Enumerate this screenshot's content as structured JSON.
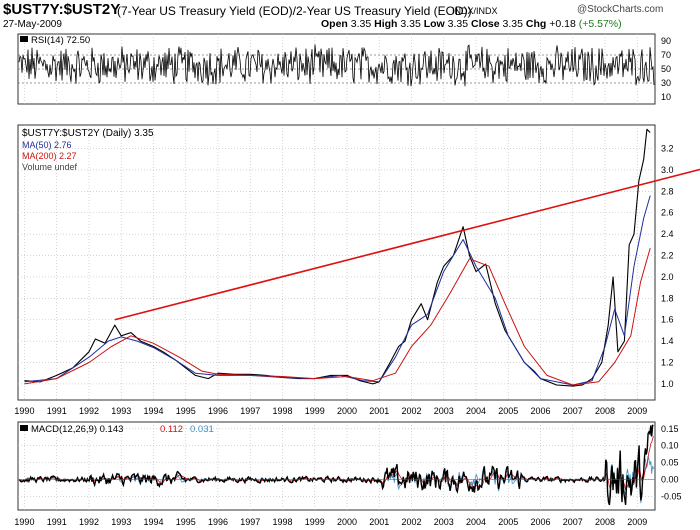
{
  "header": {
    "symbol": "$UST7Y:$UST2Y",
    "description": "(7-Year US Treasury Yield (EOD)/2-Year US Treasury Yield (EOD))",
    "exchange": "INDX/INDX",
    "brand": "@StockCharts.com",
    "date": "27-May-2009",
    "open_label": "Open",
    "open": "3.35",
    "high_label": "High",
    "high": "3.35",
    "low_label": "Low",
    "low": "3.35",
    "close_label": "Close",
    "close": "3.35",
    "chg_label": "Chg",
    "chg": "+0.18",
    "chg_pct": "(+5.57%)"
  },
  "colors": {
    "price": "#000000",
    "ma50": "#1f2f9c",
    "ma200": "#cc1111",
    "trend": "#dd1111",
    "signal": "#cc1111",
    "histogram": "#3f8fc4",
    "pct_text": "#1a7a1a",
    "grid": "#bbbbbb"
  },
  "chart_data": [
    {
      "type": "line",
      "panel": "rsi",
      "legend": "RSI(14) 72.50",
      "ylim": [
        0,
        100
      ],
      "y_ticks": [
        10,
        30,
        50,
        70,
        90
      ],
      "reference_lines": [
        30,
        50,
        70
      ],
      "last_value": 72.5
    },
    {
      "type": "line",
      "panel": "price",
      "title": "$UST7Y:$UST2Y (Daily) 3.35",
      "ylim": [
        0.85,
        3.42
      ],
      "y_ticks": [
        "1.0",
        "1.2",
        "1.4",
        "1.6",
        "1.8",
        "2.0",
        "2.2",
        "2.4",
        "2.6",
        "2.8",
        "3.0",
        "3.2"
      ],
      "x_ticks": [
        "1990",
        "1991",
        "1992",
        "1993",
        "1994",
        "1995",
        "1996",
        "1997",
        "1998",
        "1999",
        "2000",
        "2001",
        "2002",
        "2003",
        "2004",
        "2005",
        "2006",
        "2007",
        "2008",
        "2009"
      ],
      "series": [
        {
          "name": "$UST7Y:$UST2Y (Daily) 3.35",
          "points": [
            [
              1990.0,
              1.03
            ],
            [
              1990.5,
              1.02
            ],
            [
              1991.0,
              1.08
            ],
            [
              1991.5,
              1.15
            ],
            [
              1992.0,
              1.3
            ],
            [
              1992.2,
              1.42
            ],
            [
              1992.5,
              1.38
            ],
            [
              1992.8,
              1.55
            ],
            [
              1993.0,
              1.45
            ],
            [
              1993.3,
              1.48
            ],
            [
              1993.6,
              1.4
            ],
            [
              1994.0,
              1.35
            ],
            [
              1994.3,
              1.3
            ],
            [
              1994.7,
              1.22
            ],
            [
              1995.0,
              1.15
            ],
            [
              1995.3,
              1.08
            ],
            [
              1995.7,
              1.05
            ],
            [
              1996.0,
              1.1
            ],
            [
              1996.5,
              1.09
            ],
            [
              1997.0,
              1.09
            ],
            [
              1997.5,
              1.08
            ],
            [
              1998.0,
              1.06
            ],
            [
              1998.5,
              1.05
            ],
            [
              1999.0,
              1.05
            ],
            [
              1999.5,
              1.08
            ],
            [
              2000.0,
              1.08
            ],
            [
              2000.4,
              1.03
            ],
            [
              2000.8,
              1.0
            ],
            [
              2001.0,
              1.02
            ],
            [
              2001.3,
              1.18
            ],
            [
              2001.6,
              1.35
            ],
            [
              2001.8,
              1.4
            ],
            [
              2002.0,
              1.6
            ],
            [
              2002.3,
              1.75
            ],
            [
              2002.5,
              1.6
            ],
            [
              2002.8,
              1.95
            ],
            [
              2003.0,
              2.1
            ],
            [
              2003.3,
              2.2
            ],
            [
              2003.6,
              2.47
            ],
            [
              2003.8,
              2.2
            ],
            [
              2004.0,
              2.05
            ],
            [
              2004.3,
              2.12
            ],
            [
              2004.6,
              1.75
            ],
            [
              2004.9,
              1.5
            ],
            [
              2005.2,
              1.35
            ],
            [
              2005.5,
              1.2
            ],
            [
              2005.8,
              1.12
            ],
            [
              2006.0,
              1.05
            ],
            [
              2006.5,
              0.99
            ],
            [
              2007.0,
              0.98
            ],
            [
              2007.3,
              0.99
            ],
            [
              2007.6,
              1.05
            ],
            [
              2007.9,
              1.2
            ],
            [
              2008.1,
              1.55
            ],
            [
              2008.25,
              2.0
            ],
            [
              2008.4,
              1.3
            ],
            [
              2008.6,
              1.4
            ],
            [
              2008.75,
              2.3
            ],
            [
              2008.9,
              2.4
            ],
            [
              2009.05,
              2.9
            ],
            [
              2009.2,
              3.1
            ],
            [
              2009.3,
              3.38
            ],
            [
              2009.4,
              3.35
            ]
          ]
        },
        {
          "name": "MA(50) 2.76",
          "points": [
            [
              1990.0,
              1.02
            ],
            [
              1991.0,
              1.05
            ],
            [
              1992.0,
              1.25
            ],
            [
              1992.6,
              1.4
            ],
            [
              1993.0,
              1.44
            ],
            [
              1993.5,
              1.4
            ],
            [
              1994.0,
              1.34
            ],
            [
              1994.7,
              1.22
            ],
            [
              1995.3,
              1.1
            ],
            [
              1996.0,
              1.08
            ],
            [
              1997.0,
              1.08
            ],
            [
              1998.0,
              1.06
            ],
            [
              1999.0,
              1.05
            ],
            [
              1999.8,
              1.08
            ],
            [
              2000.5,
              1.03
            ],
            [
              2001.0,
              1.02
            ],
            [
              2001.5,
              1.25
            ],
            [
              2002.0,
              1.55
            ],
            [
              2002.5,
              1.65
            ],
            [
              2003.0,
              2.05
            ],
            [
              2003.6,
              2.35
            ],
            [
              2004.0,
              2.1
            ],
            [
              2004.6,
              1.8
            ],
            [
              2005.0,
              1.45
            ],
            [
              2005.5,
              1.2
            ],
            [
              2006.0,
              1.05
            ],
            [
              2007.0,
              0.99
            ],
            [
              2007.6,
              1.03
            ],
            [
              2008.0,
              1.35
            ],
            [
              2008.3,
              1.7
            ],
            [
              2008.6,
              1.45
            ],
            [
              2008.9,
              2.1
            ],
            [
              2009.2,
              2.55
            ],
            [
              2009.4,
              2.76
            ]
          ]
        },
        {
          "name": "MA(200) 2.27",
          "points": [
            [
              1990.0,
              1.0
            ],
            [
              1991.0,
              1.05
            ],
            [
              1992.0,
              1.2
            ],
            [
              1992.7,
              1.35
            ],
            [
              1993.3,
              1.45
            ],
            [
              1994.0,
              1.38
            ],
            [
              1994.8,
              1.25
            ],
            [
              1995.5,
              1.12
            ],
            [
              1996.0,
              1.09
            ],
            [
              1997.0,
              1.08
            ],
            [
              1998.0,
              1.07
            ],
            [
              1999.0,
              1.05
            ],
            [
              2000.0,
              1.07
            ],
            [
              2000.8,
              1.03
            ],
            [
              2001.5,
              1.1
            ],
            [
              2002.0,
              1.35
            ],
            [
              2002.6,
              1.55
            ],
            [
              2003.2,
              1.85
            ],
            [
              2003.8,
              2.17
            ],
            [
              2004.4,
              2.1
            ],
            [
              2004.9,
              1.75
            ],
            [
              2005.5,
              1.35
            ],
            [
              2006.2,
              1.08
            ],
            [
              2007.0,
              0.99
            ],
            [
              2007.8,
              1.02
            ],
            [
              2008.3,
              1.2
            ],
            [
              2008.8,
              1.45
            ],
            [
              2009.1,
              1.95
            ],
            [
              2009.4,
              2.27
            ]
          ]
        }
      ],
      "trendline": {
        "from": [
          1992.8,
          1.6
        ],
        "to": [
          2010.2,
          3.0
        ]
      },
      "last_value": 3.35
    },
    {
      "type": "line",
      "panel": "volume",
      "legend": "Volume undef"
    },
    {
      "type": "line",
      "panel": "macd",
      "legend_label": "MACD(12,26,9)",
      "macd": 0.143,
      "signal": 0.112,
      "histogram": 0.031,
      "ylim": [
        -0.09,
        0.17
      ],
      "y_ticks": [
        "-0.05",
        "0.00",
        "0.05",
        "0.10",
        "0.15"
      ],
      "x_ticks": [
        "1990",
        "1991",
        "1992",
        "1993",
        "1994",
        "1995",
        "1996",
        "1997",
        "1998",
        "1999",
        "2000",
        "2001",
        "2002",
        "2003",
        "2004",
        "2005",
        "2006",
        "2007",
        "2008",
        "2009"
      ]
    }
  ]
}
